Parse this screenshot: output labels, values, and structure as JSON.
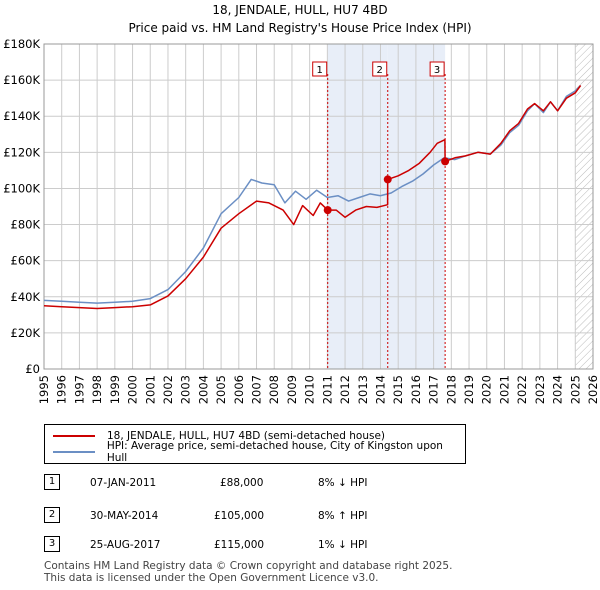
{
  "title_line1": "18, JENDALE, HULL, HU7 4BD",
  "title_line2": "Price paid vs. HM Land Registry's House Price Index (HPI)",
  "legend": {
    "property": "18, JENDALE, HULL, HU7 4BD (semi-detached house)",
    "hpi": "HPI: Average price, semi-detached house, City of Kingston upon Hull"
  },
  "transactions": [
    {
      "num": "1",
      "date": "07-JAN-2011",
      "price": "£88,000",
      "hpi": "8% ↓ HPI"
    },
    {
      "num": "2",
      "date": "30-MAY-2014",
      "price": "£105,000",
      "hpi": "8% ↑ HPI"
    },
    {
      "num": "3",
      "date": "25-AUG-2017",
      "price": "£115,000",
      "hpi": "1% ↓ HPI"
    }
  ],
  "footer_line1": "Contains HM Land Registry data © Crown copyright and database right 2025.",
  "footer_line2": "This data is licensed under the Open Government Licence v3.0.",
  "chart_data": {
    "type": "line",
    "xlim": [
      1995,
      2026
    ],
    "ylim": [
      0,
      180000
    ],
    "y_ticks": [
      0,
      20000,
      40000,
      60000,
      80000,
      100000,
      120000,
      140000,
      160000,
      180000
    ],
    "y_tick_labels": [
      "£0",
      "£20K",
      "£40K",
      "£60K",
      "£80K",
      "£100K",
      "£120K",
      "£140K",
      "£160K",
      "£180K"
    ],
    "x_ticks": [
      1995,
      1996,
      1997,
      1998,
      1999,
      2000,
      2001,
      2002,
      2003,
      2004,
      2005,
      2006,
      2007,
      2008,
      2009,
      2010,
      2011,
      2012,
      2013,
      2014,
      2015,
      2016,
      2017,
      2018,
      2019,
      2020,
      2021,
      2022,
      2023,
      2024,
      2025,
      2026
    ],
    "colors": {
      "property": "#cc0000",
      "hpi": "#6b8fc4",
      "shade": "#e8eef8",
      "grid": "#cccccc"
    },
    "shaded_ranges": [
      [
        2011.02,
        2014.41
      ],
      [
        2014.41,
        2017.65
      ]
    ],
    "forecast_start": 2025.0,
    "markers": [
      {
        "label": "1",
        "x": 2011.02,
        "y": 88000
      },
      {
        "label": "2",
        "x": 2014.41,
        "y": 105000
      },
      {
        "label": "3",
        "x": 2017.65,
        "y": 115000
      }
    ],
    "series": [
      {
        "name": "18, JENDALE, HULL, HU7 4BD (semi-detached house)",
        "color": "#cc0000",
        "x": [
          1995,
          1996,
          1997,
          1998,
          1999,
          2000,
          2001,
          2002,
          2003,
          2004,
          2005,
          2006,
          2007,
          2007.7,
          2008.5,
          2009.1,
          2009.6,
          2010.2,
          2010.6,
          2011.02,
          2011.5,
          2012.0,
          2012.6,
          2013.2,
          2013.8,
          2014.4,
          2014.41,
          2015.0,
          2015.6,
          2016.2,
          2016.8,
          2017.2,
          2017.64,
          2017.65,
          2018.2,
          2018.8,
          2019.5,
          2020.2,
          2020.8,
          2021.3,
          2021.8,
          2022.3,
          2022.7,
          2023.2,
          2023.6,
          2024.0,
          2024.5,
          2025.0,
          2025.3
        ],
        "y": [
          35000,
          34500,
          34000,
          33500,
          34000,
          34500,
          35500,
          40500,
          50000,
          62000,
          78000,
          86000,
          93000,
          92000,
          88000,
          80000,
          90500,
          85000,
          92000,
          88000,
          88000,
          84000,
          88000,
          90000,
          89500,
          91000,
          105000,
          107000,
          110000,
          114000,
          120000,
          125000,
          127000,
          115000,
          117000,
          118000,
          120000,
          119000,
          125000,
          132000,
          136000,
          144000,
          147000,
          143000,
          148000,
          143000,
          150000,
          153000,
          157000
        ]
      },
      {
        "name": "HPI: Average price, semi-detached house, City of Kingston upon Hull",
        "color": "#6b8fc4",
        "x": [
          1995,
          1996,
          1997,
          1998,
          1999,
          2000,
          2001,
          2002,
          2003,
          2004,
          2005,
          2006,
          2006.7,
          2007.3,
          2008.0,
          2008.6,
          2009.2,
          2009.8,
          2010.4,
          2011.0,
          2011.6,
          2012.2,
          2012.8,
          2013.4,
          2014.0,
          2014.6,
          2015.2,
          2015.8,
          2016.4,
          2017.0,
          2017.6,
          2018.2,
          2018.8,
          2019.5,
          2020.2,
          2020.8,
          2021.3,
          2021.8,
          2022.3,
          2022.7,
          2023.2,
          2023.6,
          2024.0,
          2024.5,
          2025.0,
          2025.3
        ],
        "y": [
          38000,
          37500,
          37000,
          36500,
          37000,
          37500,
          39000,
          44000,
          54000,
          67000,
          86000,
          95000,
          105000,
          103000,
          102000,
          92000,
          98500,
          94000,
          99000,
          95000,
          96000,
          93000,
          95000,
          97000,
          96000,
          97500,
          101000,
          104000,
          108000,
          113000,
          117000,
          116000,
          118000,
          120000,
          119000,
          124000,
          131000,
          135000,
          143000,
          147000,
          142000,
          148000,
          143000,
          151000,
          154000,
          157000
        ]
      }
    ]
  }
}
